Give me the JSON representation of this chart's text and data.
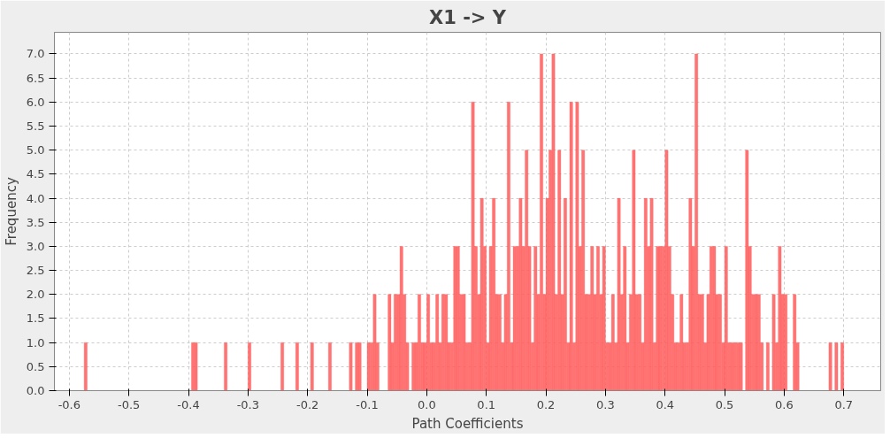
{
  "chart_data": {
    "type": "histogram",
    "title": "X1 -> Y",
    "xlabel": "Path Coefficients",
    "ylabel": "Frequency",
    "color": "#ff5a5a",
    "grid": true,
    "xlim": [
      -0.625,
      0.762
    ],
    "ylim": [
      0,
      7.45
    ],
    "xticks": [
      {
        "value": -0.6,
        "label": "-0.6"
      },
      {
        "value": -0.5,
        "label": "-0.5"
      },
      {
        "value": -0.4,
        "label": "-0.4"
      },
      {
        "value": -0.3,
        "label": "-0.3"
      },
      {
        "value": -0.2,
        "label": "-0.2"
      },
      {
        "value": -0.1,
        "label": "-0.1"
      },
      {
        "value": 0,
        "label": "0.0"
      },
      {
        "value": 0.1,
        "label": "0.1"
      },
      {
        "value": 0.2,
        "label": "0.2"
      },
      {
        "value": 0.3,
        "label": "0.3"
      },
      {
        "value": 0.4,
        "label": "0.4"
      },
      {
        "value": 0.5,
        "label": "0.5"
      },
      {
        "value": 0.6,
        "label": "0.6"
      },
      {
        "value": 0.7,
        "label": "0.7"
      }
    ],
    "yticks": [
      {
        "value": 0,
        "label": "0.0"
      },
      {
        "value": 0.5,
        "label": "0.5"
      },
      {
        "value": 1,
        "label": "1.0"
      },
      {
        "value": 1.5,
        "label": "1.5"
      },
      {
        "value": 2,
        "label": "2.0"
      },
      {
        "value": 2.5,
        "label": "2.5"
      },
      {
        "value": 3,
        "label": "3.0"
      },
      {
        "value": 3.5,
        "label": "3.5"
      },
      {
        "value": 4,
        "label": "4.0"
      },
      {
        "value": 4.5,
        "label": "4.5"
      },
      {
        "value": 5,
        "label": "5.0"
      },
      {
        "value": 5.5,
        "label": "5.5"
      },
      {
        "value": 6,
        "label": "6.0"
      },
      {
        "value": 6.5,
        "label": "6.5"
      },
      {
        "value": 7,
        "label": "7.0"
      }
    ],
    "bins": [
      -0.6,
      -0.595,
      -0.59,
      -0.585,
      -0.58,
      -0.575,
      -0.57,
      -0.565,
      -0.56,
      -0.555,
      -0.55,
      -0.545,
      -0.54,
      -0.535,
      -0.53,
      -0.525,
      -0.52,
      -0.515,
      -0.51,
      -0.505,
      -0.5,
      -0.495,
      -0.49,
      -0.485,
      -0.48,
      -0.475,
      -0.47,
      -0.465,
      -0.46,
      -0.455,
      -0.45,
      -0.445,
      -0.44,
      -0.435,
      -0.43,
      -0.425,
      -0.42,
      -0.415,
      -0.41,
      -0.405,
      -0.4,
      -0.395,
      -0.39,
      -0.385,
      -0.38,
      -0.375,
      -0.37,
      -0.365,
      -0.36,
      -0.355,
      -0.35,
      -0.345,
      -0.34,
      -0.335,
      -0.33,
      -0.325,
      -0.32,
      -0.315,
      -0.31,
      -0.305,
      -0.3,
      -0.295,
      -0.29,
      -0.285,
      -0.28,
      -0.275,
      -0.27,
      -0.265,
      -0.26,
      -0.255,
      -0.25,
      -0.245,
      -0.24,
      -0.235,
      -0.23,
      -0.225,
      -0.22,
      -0.215,
      -0.21,
      -0.205,
      -0.2,
      -0.195,
      -0.19,
      -0.185,
      -0.18,
      -0.175,
      -0.17,
      -0.165,
      -0.16,
      -0.155,
      -0.15,
      -0.145,
      -0.14,
      -0.135,
      -0.13,
      -0.125,
      -0.12,
      -0.115,
      -0.11,
      -0.105,
      -0.1,
      -0.095,
      -0.09,
      -0.085,
      -0.08,
      -0.075,
      -0.07,
      -0.065,
      -0.06,
      -0.055,
      -0.05,
      -0.045,
      -0.04,
      -0.035,
      -0.03,
      -0.025,
      -0.02,
      -0.015,
      -0.01,
      -0.005,
      0.0,
      0.005,
      0.01,
      0.015,
      0.02,
      0.025,
      0.03,
      0.035,
      0.04,
      0.045,
      0.05,
      0.055,
      0.06,
      0.065,
      0.07,
      0.075,
      0.08,
      0.085,
      0.09,
      0.095,
      0.1,
      0.105,
      0.11,
      0.115,
      0.12,
      0.125,
      0.13,
      0.135,
      0.14,
      0.145,
      0.15,
      0.155,
      0.16,
      0.165,
      0.17,
      0.175,
      0.18,
      0.185,
      0.19,
      0.195,
      0.2,
      0.205,
      0.21,
      0.215,
      0.22,
      0.225,
      0.23,
      0.235,
      0.24,
      0.245,
      0.25,
      0.255,
      0.26,
      0.265,
      0.27,
      0.275,
      0.28,
      0.285,
      0.29,
      0.295,
      0.3,
      0.305,
      0.31,
      0.315,
      0.32,
      0.325,
      0.33,
      0.335,
      0.34,
      0.345,
      0.35,
      0.355,
      0.36,
      0.365,
      0.37,
      0.375,
      0.38,
      0.385,
      0.39,
      0.395,
      0.4,
      0.405,
      0.41,
      0.415,
      0.42,
      0.425,
      0.43,
      0.435,
      0.44,
      0.445,
      0.45,
      0.455,
      0.46,
      0.465,
      0.47,
      0.475,
      0.48,
      0.485,
      0.49,
      0.495,
      0.5,
      0.505,
      0.51,
      0.515,
      0.52,
      0.525,
      0.53,
      0.535,
      0.54,
      0.545,
      0.55,
      0.555,
      0.56,
      0.565,
      0.57,
      0.575,
      0.58,
      0.585,
      0.59,
      0.595,
      0.6,
      0.605,
      0.61,
      0.615,
      0.62,
      0.625,
      0.63,
      0.635,
      0.64,
      0.645,
      0.65,
      0.655,
      0.66,
      0.665,
      0.67,
      0.675,
      0.68,
      0.685,
      0.69,
      0.695,
      0.7,
      0.705
    ],
    "values": [
      0,
      0,
      0,
      0,
      0,
      1,
      0,
      0,
      0,
      0,
      0,
      0,
      0,
      0,
      0,
      0,
      0,
      0,
      0,
      0,
      0,
      0,
      0,
      0,
      0,
      0,
      0,
      0,
      0,
      0,
      0,
      0,
      0,
      0,
      0,
      0,
      0,
      0,
      0,
      0,
      0,
      1,
      1,
      0,
      0,
      0,
      0,
      0,
      0,
      0,
      0,
      0,
      1,
      0,
      0,
      0,
      0,
      0,
      0,
      0,
      1,
      0,
      0,
      0,
      0,
      0,
      0,
      0,
      0,
      0,
      0,
      1,
      0,
      0,
      0,
      0,
      1,
      0,
      0,
      0,
      0,
      1,
      0,
      0,
      0,
      0,
      0,
      1,
      0,
      0,
      0,
      0,
      0,
      0,
      1,
      0,
      1,
      1,
      0,
      0,
      1,
      1,
      2,
      1,
      0,
      0,
      0,
      2,
      1,
      2,
      2,
      3,
      2,
      1,
      0,
      1,
      1,
      2,
      1,
      1,
      2,
      1,
      1,
      2,
      1,
      2,
      2,
      1,
      1,
      3,
      3,
      2,
      2,
      1,
      1,
      6,
      3,
      2,
      4,
      3,
      1,
      3,
      4,
      2,
      2,
      1,
      2,
      6,
      1,
      3,
      3,
      4,
      3,
      5,
      3,
      1,
      3,
      2,
      7,
      2,
      4,
      5,
      7,
      2,
      5,
      2,
      4,
      1,
      6,
      1,
      6,
      3,
      5,
      2,
      2,
      3,
      2,
      3,
      2,
      3,
      1,
      1,
      2,
      1,
      4,
      2,
      3,
      1,
      2,
      5,
      2,
      2,
      1,
      4,
      3,
      4,
      1,
      3,
      3,
      3,
      5,
      3,
      2,
      1,
      1,
      2,
      1,
      1,
      4,
      3,
      7,
      2,
      2,
      1,
      2,
      3,
      3,
      2,
      2,
      1,
      3,
      1,
      1,
      1,
      1,
      1,
      0,
      5,
      3,
      2,
      2,
      2,
      1,
      0,
      1,
      0,
      2,
      1,
      3,
      2,
      2,
      0,
      0,
      2,
      1,
      0,
      0,
      0,
      0,
      0,
      0,
      0,
      0,
      0,
      0,
      1,
      0,
      1,
      0,
      1,
      0
    ]
  }
}
